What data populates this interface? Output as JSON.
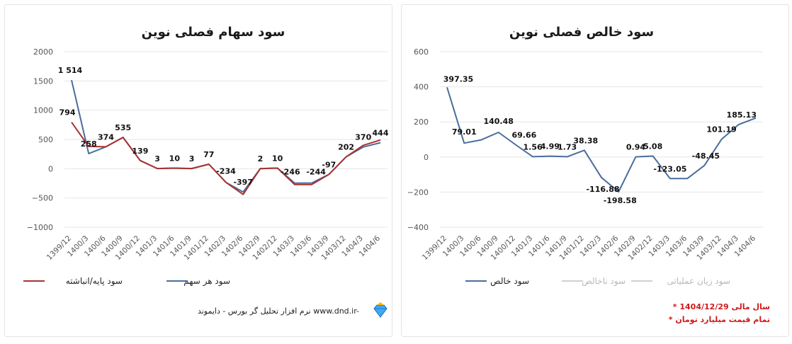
{
  "chart_data": [
    {
      "type": "line",
      "title": "سود سهام فصلی نوین",
      "categories": [
        "1399/12",
        "1400/3",
        "1400/6",
        "1400/9",
        "1400/12",
        "1401/3",
        "1401/6",
        "1401/9",
        "1401/12",
        "1402/3",
        "1402/6",
        "1402/9",
        "1402/12",
        "1403/3",
        "1403/6",
        "1403/9",
        "1403/12",
        "1404/3",
        "1404/6"
      ],
      "ylim": [
        -1000,
        2000
      ],
      "yticks": [
        2000,
        1500,
        1000,
        500,
        0,
        -500,
        -1000
      ],
      "ytick_labels": [
        "2000",
        "1500",
        "1000",
        "500",
        "0",
        "−500",
        "−1000"
      ],
      "series": [
        {
          "name": "سود هر سهم",
          "color": "#4a6d9c",
          "values": [
            1514,
            258,
            374,
            535,
            139,
            3,
            10,
            3,
            77,
            -234,
            -397,
            2,
            10,
            -246,
            -244,
            -97,
            202,
            370,
            444
          ],
          "labels": [
            "1 514",
            "258",
            "374",
            "535",
            "139",
            "3",
            "10",
            "3",
            "77",
            "-234",
            "-397",
            "2",
            "10",
            "-246",
            "-244",
            "-97",
            "202",
            "370",
            "444"
          ]
        },
        {
          "name": "سود پایه/انباشته",
          "color": "#a83232",
          "values": [
            794,
            380,
            374,
            535,
            139,
            3,
            10,
            3,
            77,
            -234,
            -440,
            2,
            10,
            -270,
            -270,
            -97,
            202,
            400,
            490
          ],
          "labels": [
            "794",
            "",
            "",
            "",
            "",
            "",
            "",
            "",
            "",
            "",
            "",
            "",
            "",
            "",
            "",
            "",
            "",
            "",
            ""
          ]
        }
      ],
      "legend": [
        {
          "name": "سود هر سهم",
          "color": "#4a6d9c",
          "muted": false
        },
        {
          "name": "سود پایه/انباشته",
          "color": "#a83232",
          "muted": false
        }
      ],
      "footer": {
        "text": "نرم افزار تحلیل گر بورس - دایموند  www.dnd.ir-",
        "logo": "diamond-logo"
      }
    },
    {
      "type": "line",
      "title": "سود خالص فصلی نوین",
      "categories": [
        "1399/12",
        "1400/3",
        "1400/6",
        "1400/9",
        "1400/12",
        "1401/3",
        "1401/6",
        "1401/9",
        "1401/12",
        "1402/3",
        "1402/6",
        "1402/9",
        "1402/12",
        "1403/3",
        "1403/6",
        "1403/9",
        "1403/12",
        "1404/3",
        "1404/6"
      ],
      "ylim": [
        -400,
        600
      ],
      "yticks": [
        600,
        400,
        200,
        0,
        -200,
        -400
      ],
      "ytick_labels": [
        "600",
        "400",
        "200",
        "0",
        "−200",
        "−400"
      ],
      "series": [
        {
          "name": "سود خالص",
          "color": "#4a6d9c",
          "values": [
            397.35,
            79.01,
            97.5,
            140.48,
            69.66,
            1.56,
            4.99,
            1.73,
            38.38,
            -116.88,
            -198.58,
            0.94,
            5.08,
            -123.05,
            -123.0,
            -48.45,
            101.19,
            185.13,
            222.0
          ],
          "labels": [
            "397.35",
            "79.01",
            "",
            "140.48",
            "69.66",
            "1.56",
            "4.99",
            "1.73",
            "38.38",
            "-116.88",
            "-198.58",
            "0.94",
            "5.08",
            "-123.05",
            "",
            "-48.45",
            "101.19",
            "185.13",
            ""
          ]
        }
      ],
      "legend": [
        {
          "name": "سود خالص",
          "color": "#4a6d9c",
          "muted": false
        },
        {
          "name": "سود ناخالص",
          "color": "#cfcfcf",
          "muted": true
        },
        {
          "name": "سود زیان عملیاتی",
          "color": "#cfcfcf",
          "muted": true
        }
      ],
      "notes": [
        "* سال مالی 1404/12/29",
        "* تمام قیمت میلیارد تومان"
      ]
    }
  ]
}
